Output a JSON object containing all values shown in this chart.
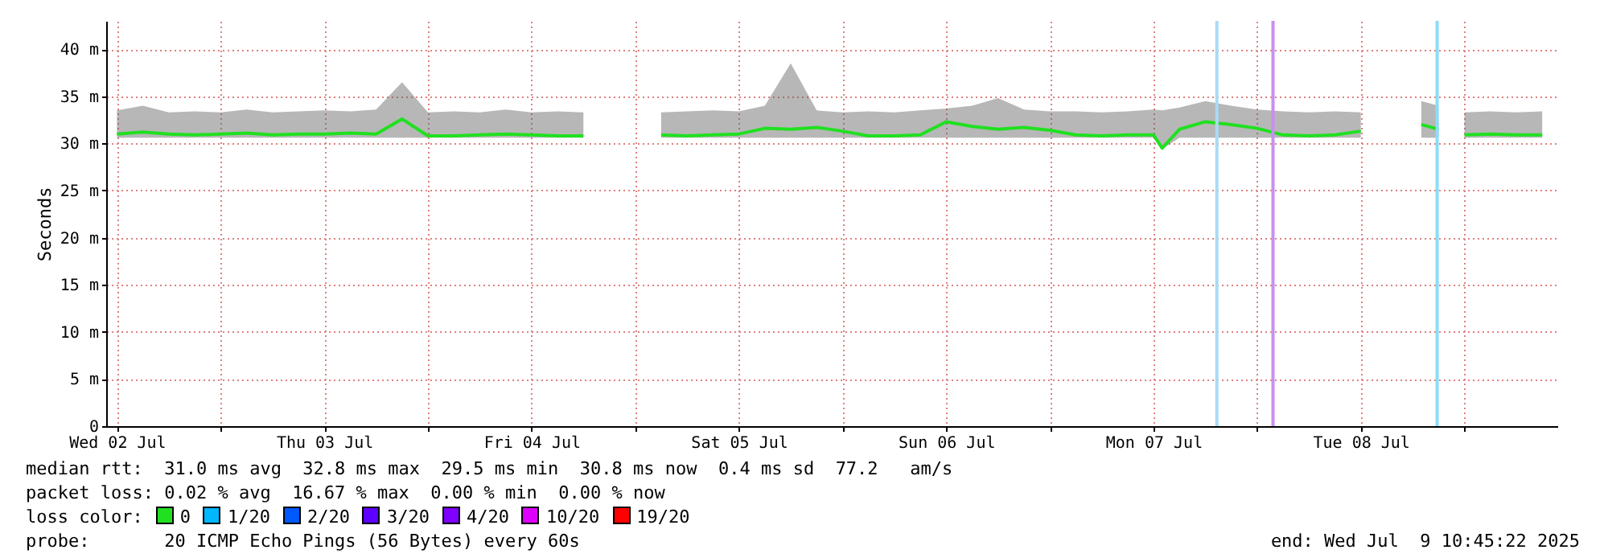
{
  "chart_data": {
    "type": "line",
    "ylabel": "Seconds",
    "x": [
      "2025-07-02T12:00",
      "2025-07-02T15:00",
      "2025-07-02T18:00",
      "2025-07-02T21:00",
      "2025-07-03T00:00",
      "2025-07-03T03:00",
      "2025-07-03T06:00",
      "2025-07-03T09:00",
      "2025-07-03T12:00",
      "2025-07-03T15:00",
      "2025-07-03T18:00",
      "2025-07-03T21:00",
      "2025-07-04T00:00",
      "2025-07-04T03:00",
      "2025-07-04T06:00",
      "2025-07-04T09:00",
      "2025-07-04T12:00",
      "2025-07-04T15:00",
      "2025-07-04T18:00",
      "2025-07-04T21:00",
      "2025-07-05T03:00",
      "2025-07-05T06:00",
      "2025-07-05T09:00",
      "2025-07-05T12:00",
      "2025-07-05T15:00",
      "2025-07-05T18:00",
      "2025-07-05T21:00",
      "2025-07-06T00:00",
      "2025-07-06T03:00",
      "2025-07-06T06:00",
      "2025-07-06T09:00",
      "2025-07-06T12:00",
      "2025-07-06T15:00",
      "2025-07-06T18:00",
      "2025-07-06T21:00",
      "2025-07-07T00:00",
      "2025-07-07T03:00",
      "2025-07-07T06:00",
      "2025-07-07T09:00",
      "2025-07-07T12:00",
      "2025-07-07T13:00",
      "2025-07-07T15:00",
      "2025-07-07T18:00",
      "2025-07-07T21:00",
      "2025-07-08T00:00",
      "2025-07-08T03:00",
      "2025-07-08T06:00",
      "2025-07-08T09:00",
      "2025-07-08T12:00",
      "2025-07-08T15:00",
      "2025-07-08T19:00",
      "2025-07-08T21:00",
      "2025-07-08T22:30",
      "2025-07-09T00:00",
      "2025-07-09T03:00",
      "2025-07-09T06:00",
      "2025-07-09T09:00"
    ],
    "series": [
      {
        "color": "#20e020",
        "values": [
          31.0,
          31.2,
          31.0,
          30.9,
          31.0,
          31.1,
          30.9,
          31.0,
          31.0,
          31.1,
          31.0,
          32.6,
          30.8,
          30.8,
          30.9,
          31.0,
          30.9,
          30.8,
          30.8,
          null,
          30.9,
          30.8,
          30.9,
          31.0,
          31.6,
          31.5,
          31.7,
          31.3,
          30.8,
          30.8,
          30.9,
          32.3,
          31.8,
          31.5,
          31.7,
          31.4,
          30.9,
          30.8,
          30.9,
          30.9,
          29.5,
          31.5,
          32.3,
          32.0,
          31.6,
          30.9,
          30.8,
          30.9,
          31.3,
          null,
          32.0,
          31.5,
          null,
          30.9,
          31.0,
          30.9,
          30.9
        ],
        "lower": [
          30.6,
          30.6,
          30.6,
          30.6,
          30.6,
          30.6,
          30.6,
          30.6,
          30.6,
          30.6,
          30.6,
          30.6,
          30.6,
          30.6,
          30.6,
          30.6,
          30.6,
          30.6,
          30.6,
          null,
          30.6,
          30.6,
          30.6,
          30.6,
          30.6,
          30.6,
          30.6,
          30.6,
          30.6,
          30.6,
          30.6,
          30.6,
          30.6,
          30.6,
          30.6,
          30.6,
          30.6,
          30.6,
          30.6,
          30.6,
          29.4,
          30.6,
          30.6,
          30.6,
          30.6,
          30.6,
          30.6,
          30.6,
          30.6,
          null,
          30.6,
          30.6,
          null,
          30.6,
          30.6,
          30.6,
          30.6
        ],
        "upper": [
          33.5,
          34.0,
          33.3,
          33.4,
          33.3,
          33.6,
          33.3,
          33.4,
          33.5,
          33.4,
          33.6,
          36.5,
          33.3,
          33.4,
          33.3,
          33.6,
          33.3,
          33.4,
          33.3,
          null,
          33.3,
          33.4,
          33.5,
          33.4,
          34.0,
          38.5,
          33.5,
          33.3,
          33.4,
          33.3,
          33.5,
          33.7,
          34.0,
          34.8,
          33.6,
          33.4,
          33.4,
          33.3,
          33.4,
          33.6,
          33.5,
          33.8,
          34.5,
          34.0,
          33.6,
          33.4,
          33.3,
          33.4,
          33.3,
          null,
          34.5,
          34.0,
          null,
          33.3,
          33.4,
          33.3,
          33.4
        ]
      }
    ],
    "xlim": [
      "2025-07-02T10:45",
      "2025-07-09T10:45"
    ],
    "xticks": [
      {
        "value": "2025-07-02T12:00",
        "label": "Wed 02 Jul"
      },
      {
        "value": "2025-07-03T00:00",
        "label": null
      },
      {
        "value": "2025-07-03T12:00",
        "label": "Thu 03 Jul"
      },
      {
        "value": "2025-07-04T00:00",
        "label": null
      },
      {
        "value": "2025-07-04T12:00",
        "label": "Fri 04 Jul"
      },
      {
        "value": "2025-07-05T00:00",
        "label": null
      },
      {
        "value": "2025-07-05T12:00",
        "label": "Sat 05 Jul"
      },
      {
        "value": "2025-07-06T00:00",
        "label": null
      },
      {
        "value": "2025-07-06T12:00",
        "label": "Sun 06 Jul"
      },
      {
        "value": "2025-07-07T00:00",
        "label": null
      },
      {
        "value": "2025-07-07T12:00",
        "label": "Mon 07 Jul"
      },
      {
        "value": "2025-07-08T00:00",
        "label": null
      },
      {
        "value": "2025-07-08T12:00",
        "label": "Tue 08 Jul"
      },
      {
        "value": "2025-07-09T00:00",
        "label": null
      }
    ],
    "ylim": [
      0,
      43
    ],
    "yticks": [
      0,
      {
        "value": 5,
        "label": "5 m"
      },
      {
        "value": 10,
        "label": "10 m"
      },
      {
        "value": 15,
        "label": "15 m"
      },
      {
        "value": 20,
        "label": "20 m"
      },
      {
        "value": 25,
        "label": "25 m"
      },
      {
        "value": 30,
        "label": "30 m"
      },
      {
        "value": 35,
        "label": "35 m"
      },
      {
        "value": 40,
        "label": "40 m"
      }
    ],
    "grid": true,
    "ref_lines": [
      {
        "axis": "x",
        "value": "2025-07-07T19:20",
        "color": "#a8dcf4"
      },
      {
        "axis": "x",
        "value": "2025-07-08T01:50",
        "color": "#c890f0"
      },
      {
        "axis": "x",
        "value": "2025-07-08T20:50",
        "color": "#8cdcf8"
      }
    ],
    "annotations": [
      "median rtt:  31.0 ms avg  32.8 ms max  29.5 ms min  30.8 ms now  0.4 ms sd  77.2   am/s",
      "packet loss: 0.02 % avg  16.67 % max  0.00 % min  0.00 % now",
      "loss color:",
      "0",
      "1/20",
      "2/20",
      "3/20",
      "4/20",
      "10/20",
      "19/20",
      "probe:       20 ICMP Echo Pings (56 Bytes) every 60s",
      "end: Wed Jul  9 10:45:22 2025"
    ]
  }
}
